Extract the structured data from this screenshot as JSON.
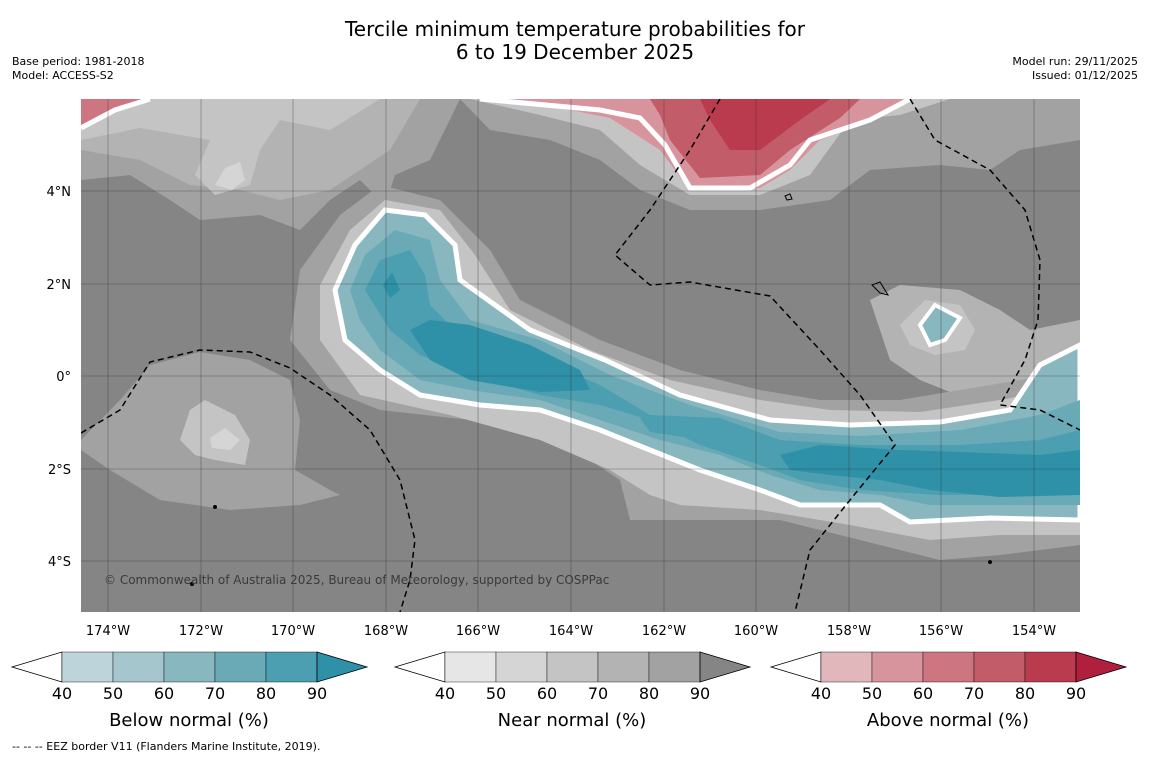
{
  "title_line1": "Tercile minimum temperature probabilities for",
  "title_line2": "6 to 19 December 2025",
  "meta_left": {
    "base_period": "Base period: 1981-2018",
    "model": "Model: ACCESS-S2"
  },
  "meta_right": {
    "model_run": "Model run: 29/11/2025",
    "issued": "Issued: 01/12/2025"
  },
  "copyright": "© Commonwealth of Australia 2025, Bureau of Meteorology, supported by COSPPac",
  "lon_labels": [
    "174°W",
    "172°W",
    "170°W",
    "168°W",
    "166°W",
    "164°W",
    "162°W",
    "160°W",
    "158°W",
    "156°W",
    "154°W"
  ],
  "lat_labels": [
    "4°N",
    "2°N",
    "0°",
    "2°S",
    "4°S"
  ],
  "legends": [
    {
      "title": "Below normal (%)",
      "ticks": [
        "40",
        "50",
        "60",
        "70",
        "80",
        "90"
      ],
      "colors": [
        "#bcd4da",
        "#a4c6cc",
        "#88b7bf",
        "#6aa9b6",
        "#4b9fb0",
        "#2e91a7"
      ]
    },
    {
      "title": "Near normal (%)",
      "ticks": [
        "40",
        "50",
        "60",
        "70",
        "80",
        "90"
      ],
      "colors": [
        "#e6e6e6",
        "#d5d5d5",
        "#c4c4c4",
        "#b3b3b3",
        "#a2a2a2",
        "#858585"
      ]
    },
    {
      "title": "Above normal (%)",
      "ticks": [
        "40",
        "50",
        "60",
        "70",
        "80",
        "90"
      ],
      "colors": [
        "#e2b7bc",
        "#d8949d",
        "#cd7681",
        "#c35c69",
        "#b93b4d",
        "#b0203e"
      ]
    }
  ],
  "footnote": "--  --  -- EEZ border V11 (Flanders Marine Institute, 2019).",
  "colors": {
    "background": "#858585",
    "white_line": "#ffffff",
    "eez": "#000000"
  }
}
